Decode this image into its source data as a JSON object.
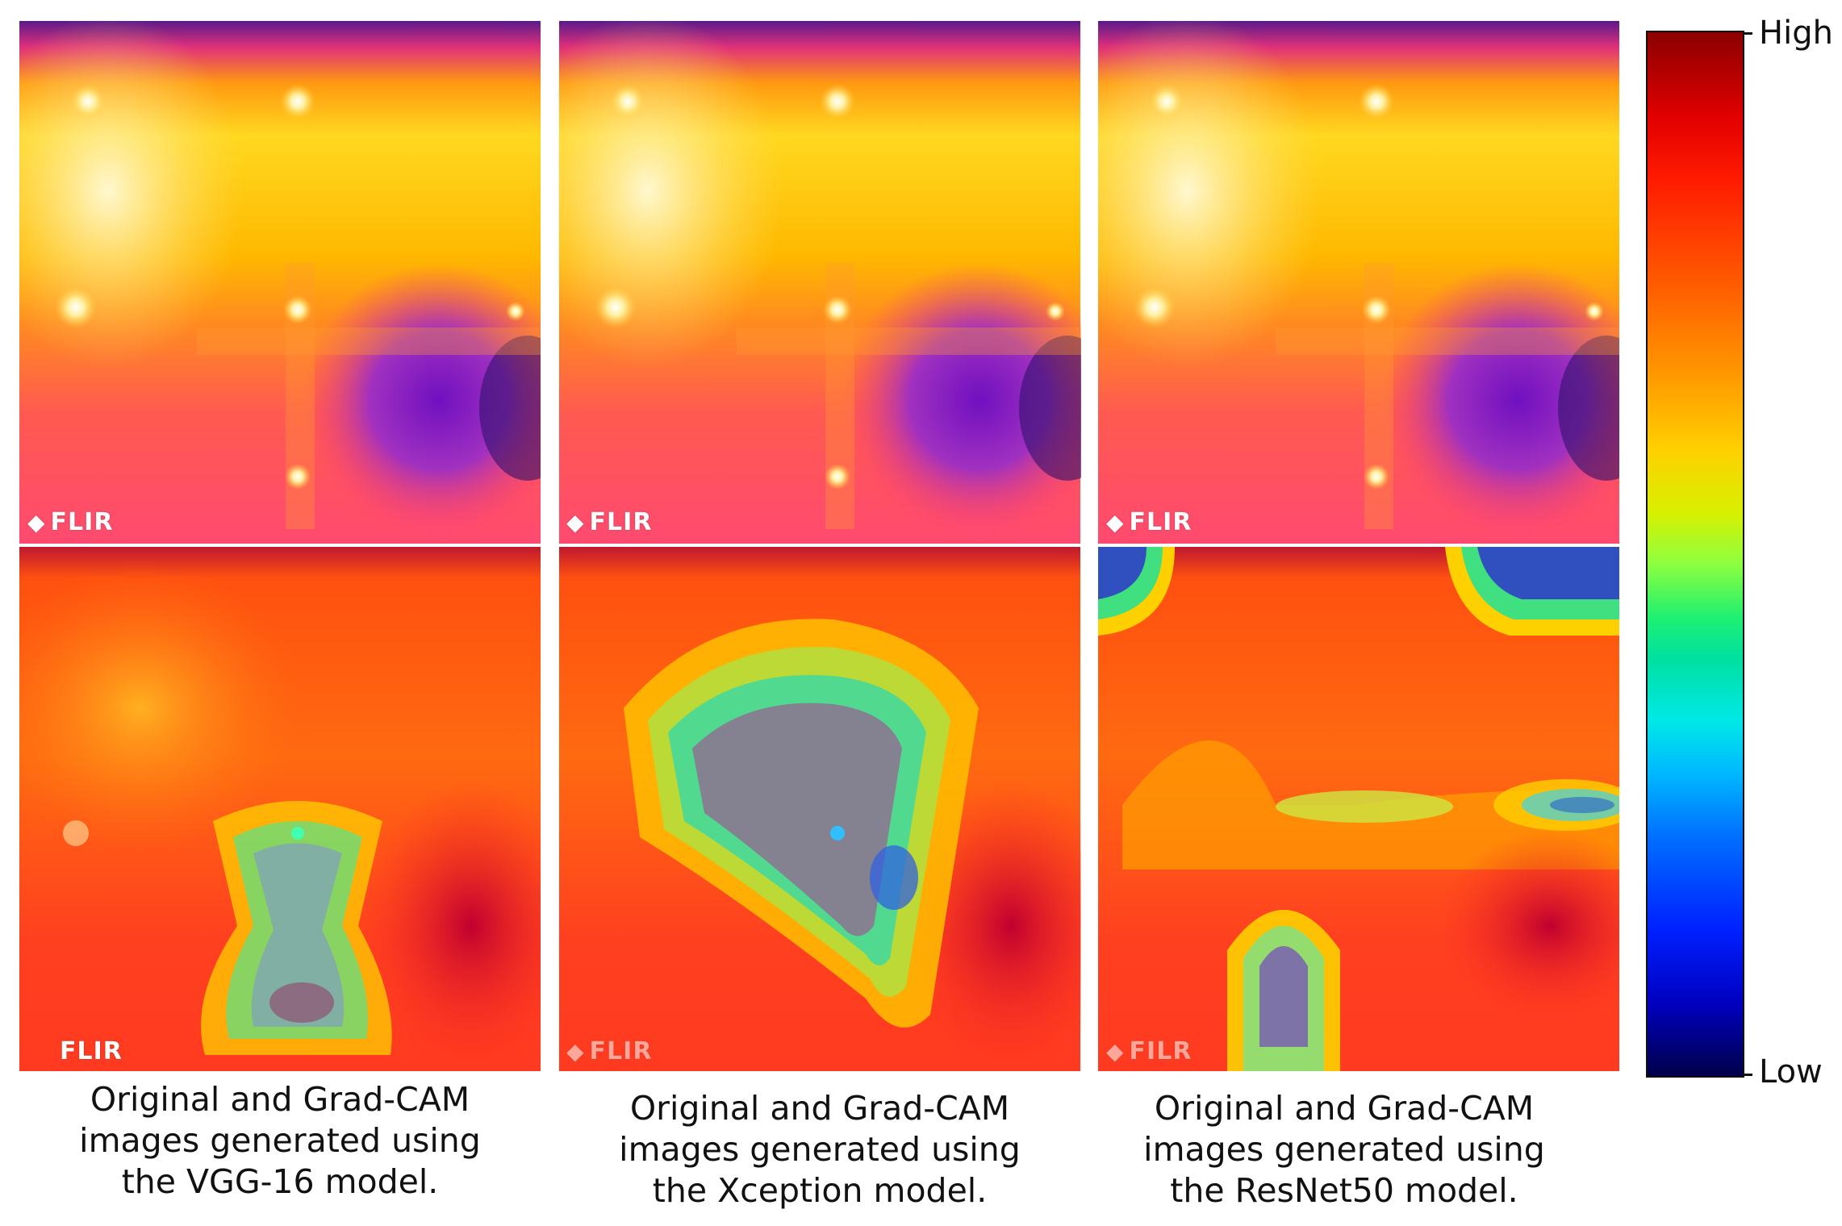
{
  "logo_text": "FLIR",
  "logo_text_resnet": "FILR",
  "captions": [
    {
      "line1": "Original and Grad-CAM",
      "line2": "images generated using",
      "line3": "the VGG-16 model."
    },
    {
      "line1": "Original and Grad-CAM",
      "line2": "images generated using",
      "line3": "the Xception model."
    },
    {
      "line1": "Original and Grad-CAM",
      "line2": "images generated using",
      "line3": "the ResNet50 model."
    }
  ],
  "colorbar": {
    "high_label": "High",
    "low_label": "Low"
  },
  "colors": {
    "thermal_hot": "#fff0a0",
    "thermal_warm": "#ffb000",
    "thermal_mid": "#ff5050",
    "thermal_cool": "#8020d0",
    "gradcam_high": "#e00000",
    "gradcam_low": "#00c8ff"
  },
  "icons": {
    "logo_mark": "flir-diamond-icon"
  }
}
